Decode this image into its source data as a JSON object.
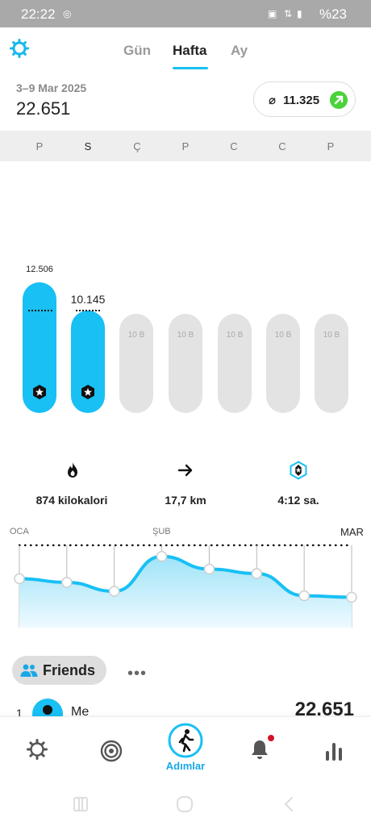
{
  "status": {
    "time": "22:22",
    "battery": "%23"
  },
  "tabs": [
    {
      "label": "Gün",
      "active": false
    },
    {
      "label": "Hafta",
      "active": true
    },
    {
      "label": "Ay",
      "active": false
    }
  ],
  "summary": {
    "range": "3–9 Mar 2025",
    "total": "22.651",
    "average_symbol": "⌀",
    "average": "11.325"
  },
  "days": [
    "P",
    "S",
    "Ç",
    "P",
    "C",
    "C",
    "P"
  ],
  "bars": [
    {
      "value": 12506,
      "label": "12.506",
      "fill": 1.0,
      "goal_reached": true
    },
    {
      "value": 10145,
      "label": "10.145",
      "fill": 0.81,
      "goal_reached": true
    },
    {
      "label": "10 B",
      "goal": true
    },
    {
      "label": "10 B",
      "goal": true
    },
    {
      "label": "10 B",
      "goal": true
    },
    {
      "label": "10 B",
      "goal": true
    },
    {
      "label": "10 B",
      "goal": true
    }
  ],
  "stats": {
    "calories": "874 kilokalori",
    "distance": "17,7 km",
    "active_time": "4:12 sa."
  },
  "trend": {
    "months": [
      "OCA",
      "ŞUB",
      "MAR"
    ],
    "levels": [
      0.55,
      0.5,
      0.38,
      0.85,
      0.68,
      0.62,
      0.32,
      0.3
    ]
  },
  "friends": {
    "label": "Friends",
    "entries": [
      {
        "rank": "1",
        "name": "Me",
        "steps": "22.651"
      }
    ]
  },
  "nav": {
    "active_label": "Adımlar"
  },
  "colors": {
    "accent": "#18c0f4",
    "green": "#4cd23a",
    "notif": "#d0142c"
  }
}
